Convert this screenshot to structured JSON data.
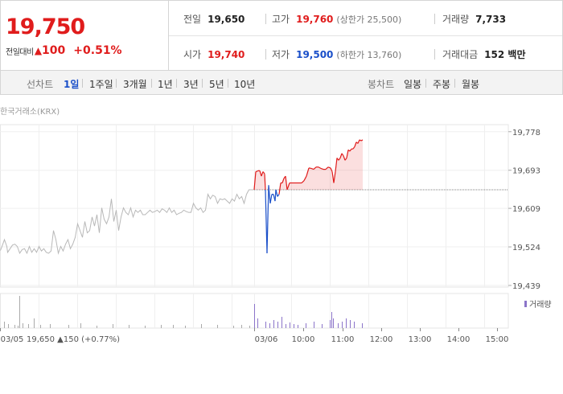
{
  "quote": {
    "price": "19,750",
    "change_label": "전일대비",
    "change_value": "100",
    "change_pct": "+0.51%",
    "prev_close_label": "전일",
    "prev_close": "19,650",
    "high_label": "고가",
    "high": "19,760",
    "upper_limit": "(상한가 25,500)",
    "volume_label": "거래량",
    "volume": "7,733",
    "open_label": "시가",
    "open": "19,740",
    "low_label": "저가",
    "low": "19,500",
    "lower_limit": "(하한가 13,760)",
    "amount_label": "거래대금",
    "amount": "152 백만"
  },
  "tabs": {
    "line_label": "선차트",
    "line": [
      "1일",
      "1주일",
      "3개월",
      "1년",
      "3년",
      "5년",
      "10년"
    ],
    "candle_label": "봉차트",
    "candle": [
      "일봉",
      "주봉",
      "월봉"
    ]
  },
  "source": "한국거래소(KRX)",
  "colors": {
    "up": "#e01c1c",
    "down": "#1a4fc9",
    "prev": "#b8b8b8",
    "volume": "#8b74c9"
  },
  "footer": {
    "date_prev": "03/05",
    "price_prev": "19,650",
    "change_prev": "150",
    "pct_prev": "(+0.77%)"
  },
  "chart_data": {
    "type": "line",
    "ylim": [
      19439,
      19790
    ],
    "y_ticks": [
      19778,
      19693,
      19609,
      19524,
      19439
    ],
    "y_tick_labels": [
      "19,778",
      "19,693",
      "19,609",
      "19,524",
      "19,439"
    ],
    "x_tick_labels": [
      "03/05",
      "03/06",
      "10:00",
      "11:00",
      "12:00",
      "13:00",
      "14:00",
      "15:00"
    ],
    "reference_line": 19650,
    "volume_legend": "거래량",
    "series": [
      {
        "x": [
          0,
          3,
          5,
          8,
          9,
          12,
          15,
          18,
          21,
          24,
          27,
          30,
          33,
          36,
          39,
          42,
          45,
          48,
          51,
          54,
          57,
          60,
          63,
          66,
          69,
          72,
          75,
          78,
          81,
          84,
          87,
          90,
          93,
          96,
          99,
          102,
          105,
          108,
          111,
          114,
          117,
          120,
          123,
          126,
          129,
          132,
          135,
          138,
          141,
          144,
          147,
          150,
          153,
          156,
          159,
          162,
          165,
          168,
          171,
          174,
          177,
          180,
          183,
          186,
          189,
          192,
          195,
          198,
          201,
          204,
          207,
          210,
          213,
          216,
          219,
          222,
          225,
          228,
          231,
          234,
          237,
          240,
          243,
          246,
          249,
          252,
          255,
          258,
          261,
          264,
          267,
          270,
          273,
          276,
          279,
          282,
          285,
          288,
          291,
          294,
          297,
          300,
          303,
          306,
          309,
          312,
          315
        ],
        "values": [
          19516,
          19530,
          19540,
          19525,
          19512,
          19520,
          19528,
          19530,
          19525,
          19510,
          19518,
          19520,
          19510,
          19525,
          19512,
          19520,
          19512,
          19525,
          19515,
          19520,
          19512,
          19510,
          19515,
          19560,
          19540,
          19510,
          19525,
          19515,
          19530,
          19540,
          19520,
          19530,
          19545,
          19575,
          19560,
          19545,
          19580,
          19555,
          19560,
          19590,
          19570,
          19595,
          19555,
          19610,
          19585,
          19575,
          19590,
          19630,
          19580,
          19605,
          19560,
          19590,
          19610,
          19600,
          19595,
          19610,
          19590,
          19605,
          19600,
          19605,
          19595,
          19595,
          19600,
          19605,
          19600,
          19602,
          19605,
          19600,
          19608,
          19605,
          19600,
          19610,
          19600,
          19605,
          19595,
          19598,
          19600,
          19605,
          19602,
          19600,
          19600,
          19620,
          19610,
          19605,
          19610,
          19600,
          19605,
          19640,
          19630,
          19638,
          19635,
          19620,
          19630,
          19628,
          19630,
          19625,
          19620,
          19630,
          19625,
          19640,
          19630,
          19635,
          19620,
          19640,
          19650,
          19650,
          19650
        ]
      },
      {
        "x": [
          316,
          318,
          319,
          321,
          323,
          325,
          327,
          329,
          330,
          332,
          334,
          336,
          338,
          340,
          342,
          343,
          345,
          347,
          349,
          351,
          353,
          355,
          357,
          360,
          363,
          366,
          369,
          372,
          375,
          378,
          381,
          384,
          387,
          390,
          393,
          396,
          399,
          402,
          405,
          408,
          411,
          413,
          415,
          417,
          419,
          421,
          423,
          425,
          427,
          429,
          431,
          433,
          435,
          437,
          439,
          441,
          443,
          445,
          447,
          449,
          451
        ],
        "values": [
          19650,
          19690,
          19690,
          19692,
          19692,
          19680,
          19690,
          19685,
          19650,
          19510,
          19660,
          19620,
          19640,
          19640,
          19625,
          19650,
          19635,
          19640,
          19665,
          19665,
          19675,
          19680,
          19650,
          19665,
          19665,
          19665,
          19665,
          19665,
          19665,
          19670,
          19680,
          19698,
          19697,
          19695,
          19700,
          19700,
          19697,
          19695,
          19695,
          19700,
          19698,
          19690,
          19665,
          19690,
          19720,
          19715,
          19720,
          19730,
          19725,
          19715,
          19720,
          19738,
          19735,
          19740,
          19740,
          19745,
          19755,
          19752,
          19760,
          19758,
          19760
        ]
      }
    ],
    "volume": {
      "x": [
        5,
        10,
        18,
        22,
        24,
        28,
        35,
        42,
        50,
        62,
        85,
        100,
        120,
        140,
        160,
        180,
        200,
        215,
        230,
        250,
        270,
        290,
        300,
        310,
        316,
        320,
        330,
        335,
        340,
        345,
        350,
        355,
        360,
        365,
        370,
        380,
        390,
        400,
        410,
        412,
        414,
        420,
        425,
        430,
        435,
        440,
        450
      ],
      "values": [
        8,
        5,
        4,
        3,
        40,
        6,
        5,
        12,
        4,
        5,
        4,
        6,
        3,
        5,
        4,
        3,
        4,
        4,
        3,
        5,
        4,
        3,
        4,
        3,
        30,
        12,
        8,
        6,
        10,
        8,
        14,
        5,
        7,
        5,
        4,
        6,
        8,
        5,
        10,
        20,
        12,
        6,
        8,
        12,
        10,
        8,
        6
      ]
    }
  }
}
